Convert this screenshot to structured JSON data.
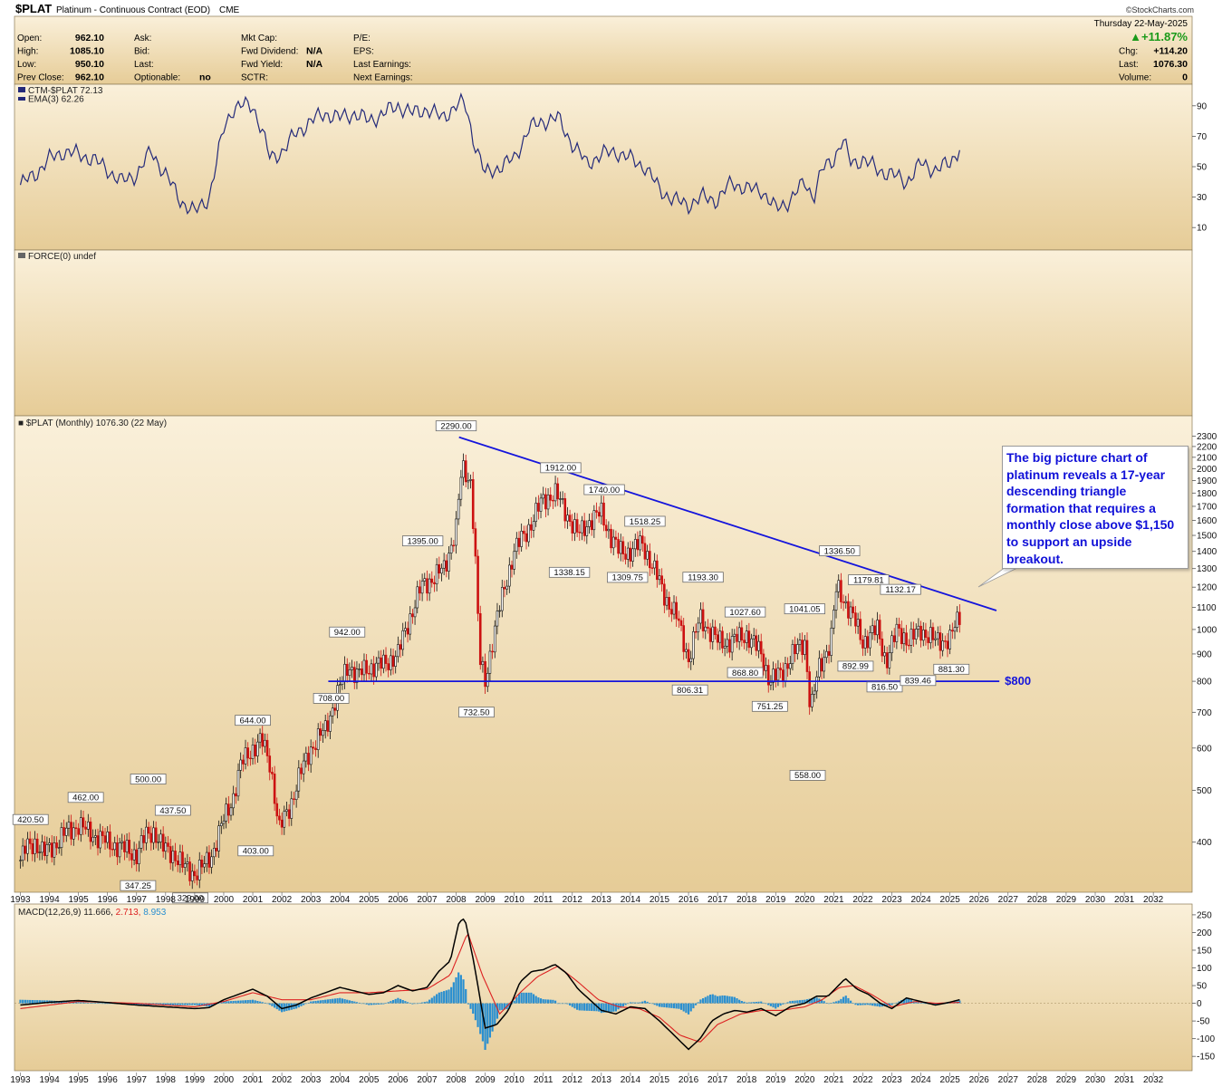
{
  "header": {
    "symbol": "$PLAT",
    "name": "Platinum - Continuous Contract (EOD)",
    "exchange": "CME",
    "copyright": "©StockCharts.com",
    "date_line": "Thursday  22-May-2025",
    "change_pct": "▲+11.87%",
    "stats_left": [
      {
        "label": "Open:",
        "value": "962.10"
      },
      {
        "label": "High:",
        "value": "1085.10"
      },
      {
        "label": "Low:",
        "value": "950.10"
      },
      {
        "label": "Prev Close:",
        "value": "962.10"
      }
    ],
    "stats_mid1": [
      {
        "label": "Ask:",
        "value": ""
      },
      {
        "label": "Bid:",
        "value": ""
      },
      {
        "label": "Last:",
        "value": ""
      },
      {
        "label": "Optionable:",
        "value": "no"
      }
    ],
    "stats_mid2": [
      {
        "label": "Mkt Cap:",
        "value": ""
      },
      {
        "label": "Fwd Dividend:",
        "value": "N/A"
      },
      {
        "label": "Fwd Yield:",
        "value": "N/A"
      },
      {
        "label": "SCTR:",
        "value": ""
      }
    ],
    "stats_mid3": [
      {
        "label": "P/E:",
        "value": ""
      },
      {
        "label": "EPS:",
        "value": ""
      },
      {
        "label": "Last Earnings:",
        "value": ""
      },
      {
        "label": "Next Earnings:",
        "value": ""
      }
    ],
    "stats_right": [
      {
        "label": "Chg:",
        "value": "+114.20"
      },
      {
        "label": "Last:",
        "value": "1076.30"
      },
      {
        "label": "Volume:",
        "value": "0"
      }
    ]
  },
  "colors": {
    "panel_bg_top": "#faf0da",
    "panel_bg_bottom": "#e6cc97",
    "price_up": "#111111",
    "price_down": "#cc1111",
    "ctm_line": "#242a7a",
    "trendline": "#1414dc",
    "callout_text": "#1010d8",
    "macd_line": "#000000",
    "signal_line": "#dd2222",
    "histogram": "#2a8fd0"
  },
  "chart_data": [
    {
      "type": "line",
      "panel": "ctm",
      "title": "CTM-$PLAT 72.13",
      "series": [
        {
          "name": "CTM-$PLAT",
          "x": [
            1993.0,
            1993.5,
            1994.0,
            1994.5,
            1995.0,
            1995.5,
            1996.0,
            1996.5,
            1997.0,
            1997.5,
            1998.0,
            1998.5,
            1999.0,
            1999.5,
            2000.0,
            2000.3,
            2000.6,
            2001.0,
            2001.3,
            2001.6,
            2002.0,
            2002.5,
            2003.0,
            2003.5,
            2004.0,
            2004.5,
            2005.0,
            2005.5,
            2006.0,
            2006.5,
            2007.0,
            2007.5,
            2008.0,
            2008.3,
            2008.6,
            2009.0,
            2009.5,
            2010.0,
            2010.5,
            2011.0,
            2011.5,
            2012.0,
            2012.5,
            2013.0,
            2013.5,
            2014.0,
            2014.5,
            2015.0,
            2015.5,
            2016.0,
            2016.5,
            2017.0,
            2017.5,
            2018.0,
            2018.5,
            2019.0,
            2019.5,
            2020.0,
            2020.3,
            2020.6,
            2021.0,
            2021.3,
            2021.6,
            2022.0,
            2022.5,
            2023.0,
            2023.5,
            2024.0,
            2024.5,
            2025.0,
            2025.4
          ],
          "values": [
            38,
            45,
            55,
            60,
            58,
            55,
            48,
            40,
            45,
            60,
            45,
            28,
            20,
            30,
            75,
            88,
            90,
            90,
            75,
            55,
            60,
            72,
            80,
            85,
            82,
            85,
            80,
            85,
            90,
            85,
            88,
            82,
            90,
            92,
            68,
            45,
            50,
            55,
            75,
            80,
            82,
            65,
            52,
            58,
            60,
            55,
            50,
            35,
            28,
            25,
            30,
            28,
            40,
            35,
            35,
            22,
            28,
            40,
            30,
            48,
            55,
            68,
            52,
            55,
            48,
            45,
            40,
            52,
            48,
            52,
            65
          ]
        },
        {
          "name": "EMA(3) 62.26",
          "x": [],
          "values": []
        }
      ],
      "ylim": [
        0,
        100
      ],
      "yticks": [
        10,
        30,
        50,
        70,
        90
      ]
    },
    {
      "type": "line",
      "panel": "force",
      "title": "FORCE(0) undef",
      "series": []
    },
    {
      "type": "bar",
      "panel": "price",
      "title": "$PLAT (Monthly) 1076.30 (22 May)",
      "scale": "log",
      "ylim": [
        330,
        2350
      ],
      "yticks": [
        400,
        500,
        600,
        700,
        800,
        900,
        1000,
        1100,
        1200,
        1300,
        1400,
        1500,
        1600,
        1700,
        1800,
        1900,
        2000,
        2100,
        2200,
        2300
      ],
      "xlim": [
        1993.0,
        2032.9
      ],
      "xticks": [
        "1993",
        "1994",
        "1995",
        "1996",
        "1997",
        "1998",
        "1999",
        "2000",
        "2001",
        "2002",
        "2003",
        "2004",
        "2005",
        "2006",
        "2007",
        "2008",
        "2009",
        "2010",
        "2011",
        "2012",
        "2013",
        "2014",
        "2015",
        "2016",
        "2017",
        "2018",
        "2019",
        "2020",
        "2021",
        "2022",
        "2023",
        "2024",
        "2025",
        "2026",
        "2027",
        "2028",
        "2029",
        "2030",
        "2031",
        "2032"
      ],
      "series": [
        {
          "name": "$PLAT",
          "x": [
            1993.0,
            1993.2,
            1993.5,
            1993.8,
            1994.0,
            1994.3,
            1994.6,
            1995.0,
            1995.3,
            1995.6,
            1996.0,
            1996.5,
            1997.0,
            1997.3,
            1997.6,
            1997.9,
            1998.3,
            1998.6,
            1999.0,
            1999.3,
            1999.6,
            2000.0,
            2000.3,
            2000.6,
            2001.0,
            2001.3,
            2001.6,
            2001.9,
            2002.3,
            2002.6,
            2003.0,
            2003.5,
            2004.0,
            2004.3,
            2004.6,
            2005.0,
            2005.5,
            2006.0,
            2006.4,
            2006.8,
            2007.2,
            2007.6,
            2008.0,
            2008.2,
            2008.5,
            2008.8,
            2009.0,
            2009.5,
            2010.0,
            2010.5,
            2011.0,
            2011.4,
            2011.8,
            2012.2,
            2012.6,
            2013.0,
            2013.3,
            2013.6,
            2014.0,
            2014.4,
            2014.8,
            2015.2,
            2015.6,
            2016.0,
            2016.4,
            2016.7,
            2017.0,
            2017.5,
            2018.0,
            2018.5,
            2018.8,
            2019.2,
            2019.6,
            2020.0,
            2020.2,
            2020.5,
            2020.9,
            2021.1,
            2021.5,
            2022.0,
            2022.5,
            2022.8,
            2023.2,
            2023.6,
            2024.0,
            2024.5,
            2025.0,
            2025.4
          ],
          "values": [
            370,
            390,
            400,
            380,
            390,
            400,
            420,
            430,
            420,
            410,
            400,
            390,
            380,
            410,
            420,
            390,
            380,
            360,
            350,
            360,
            380,
            440,
            480,
            560,
            600,
            620,
            560,
            420,
            470,
            530,
            600,
            650,
            780,
            860,
            820,
            850,
            860,
            900,
            1050,
            1200,
            1250,
            1300,
            1550,
            2000,
            1900,
            880,
            800,
            1100,
            1400,
            1550,
            1750,
            1800,
            1650,
            1500,
            1600,
            1650,
            1500,
            1400,
            1400,
            1450,
            1300,
            1150,
            1050,
            880,
            1050,
            1000,
            950,
            950,
            980,
            900,
            800,
            830,
            900,
            950,
            700,
            850,
            950,
            1200,
            1100,
            950,
            1000,
            870,
            1000,
            950,
            1000,
            950,
            960,
            1076.3
          ]
        }
      ],
      "annotations": [
        {
          "text": "420.50"
        },
        {
          "text": "462.00"
        },
        {
          "text": "347.25"
        },
        {
          "text": "500.00"
        },
        {
          "text": "437.50"
        },
        {
          "text": "329.00"
        },
        {
          "text": "644.00"
        },
        {
          "text": "403.00"
        },
        {
          "text": "708.00"
        },
        {
          "text": "942.00"
        },
        {
          "text": "1395.00"
        },
        {
          "text": "2290.00"
        },
        {
          "text": "732.50"
        },
        {
          "text": "1912.00"
        },
        {
          "text": "1338.15"
        },
        {
          "text": "1740.00"
        },
        {
          "text": "1309.75"
        },
        {
          "text": "1518.25"
        },
        {
          "text": "1193.30"
        },
        {
          "text": "806.31"
        },
        {
          "text": "1027.60"
        },
        {
          "text": "868.80"
        },
        {
          "text": "751.25"
        },
        {
          "text": "1041.05"
        },
        {
          "text": "558.00"
        },
        {
          "text": "1336.50"
        },
        {
          "text": "1179.81"
        },
        {
          "text": "892.99"
        },
        {
          "text": "1132.17"
        },
        {
          "text": "816.50"
        },
        {
          "text": "839.46"
        },
        {
          "text": "881.30"
        }
      ],
      "trendlines": [
        {
          "name": "descending-resistance",
          "from": [
            2008.1,
            2290
          ],
          "to": [
            2026.6,
            1085
          ]
        },
        {
          "name": "support-800",
          "from": [
            2003.6,
            800
          ],
          "to": [
            2026.7,
            800
          ],
          "label": "$800"
        }
      ],
      "callout": "The big picture chart of platinum reveals a 17-year descending triangle formation that requires a monthly close above $1,150 to support an upside breakout."
    },
    {
      "type": "bar",
      "panel": "macd",
      "title": "MACD(12,26,9) 11.666, 2.713, 8.953",
      "title_parts": [
        "MACD(12,26,9) 11.666,",
        "2.713,",
        "8.953"
      ],
      "ylim": [
        -170,
        260
      ],
      "yticks": [
        -150,
        -100,
        -50,
        0,
        50,
        100,
        150,
        200,
        250
      ],
      "series": [
        {
          "name": "MACD",
          "x": [
            1993.0,
            1994.0,
            1995.0,
            1996.0,
            1997.0,
            1998.0,
            1999.0,
            1999.5,
            2000.0,
            2000.5,
            2001.0,
            2001.5,
            2002.0,
            2002.5,
            2003.0,
            2003.5,
            2004.0,
            2004.5,
            2005.0,
            2005.5,
            2006.0,
            2006.5,
            2007.0,
            2007.4,
            2007.8,
            2008.1,
            2008.3,
            2008.6,
            2009.0,
            2009.4,
            2009.8,
            2010.2,
            2010.6,
            2011.0,
            2011.4,
            2011.8,
            2012.2,
            2012.6,
            2013.0,
            2013.5,
            2014.0,
            2014.5,
            2015.0,
            2015.5,
            2016.0,
            2016.4,
            2016.8,
            2017.2,
            2017.6,
            2018.0,
            2018.5,
            2019.0,
            2019.5,
            2020.0,
            2020.4,
            2020.8,
            2021.1,
            2021.4,
            2021.8,
            2022.2,
            2022.6,
            2023.0,
            2023.5,
            2024.0,
            2024.5,
            2025.0,
            2025.4
          ],
          "values": [
            -5,
            3,
            8,
            2,
            -5,
            -10,
            -15,
            -12,
            10,
            25,
            40,
            20,
            -15,
            -5,
            15,
            30,
            45,
            35,
            25,
            30,
            50,
            35,
            45,
            90,
            120,
            230,
            240,
            120,
            -70,
            -60,
            -20,
            60,
            90,
            95,
            110,
            85,
            40,
            10,
            -20,
            -30,
            -10,
            -15,
            -50,
            -90,
            -130,
            -100,
            -50,
            -30,
            -20,
            -25,
            -15,
            -35,
            -10,
            0,
            20,
            20,
            45,
            70,
            40,
            25,
            0,
            -15,
            15,
            5,
            -5,
            3,
            11.666
          ]
        },
        {
          "name": "Signal",
          "x": [
            1993.0,
            1995.0,
            1997.0,
            1999.0,
            2000.0,
            2001.0,
            2002.0,
            2003.0,
            2004.0,
            2005.0,
            2006.0,
            2007.0,
            2007.8,
            2008.4,
            2008.9,
            2009.5,
            2010.2,
            2010.8,
            2011.5,
            2012.2,
            2012.9,
            2013.6,
            2014.3,
            2015.0,
            2015.7,
            2016.4,
            2017.0,
            2017.8,
            2018.5,
            2019.2,
            2020.0,
            2020.6,
            2021.2,
            2021.7,
            2022.3,
            2023.0,
            2023.8,
            2024.5,
            2025.4
          ],
          "values": [
            -15,
            5,
            0,
            -10,
            5,
            30,
            10,
            10,
            30,
            30,
            35,
            40,
            80,
            200,
            80,
            -30,
            30,
            75,
            105,
            60,
            10,
            -10,
            -15,
            -40,
            -90,
            -110,
            -60,
            -30,
            -20,
            -20,
            -10,
            10,
            45,
            50,
            25,
            -10,
            5,
            0,
            2.713
          ]
        },
        {
          "name": "Histogram",
          "x": [],
          "values": []
        }
      ],
      "xticks": [
        "1993",
        "1994",
        "1995",
        "1996",
        "1997",
        "1998",
        "1999",
        "2000",
        "2001",
        "2002",
        "2003",
        "2004",
        "2005",
        "2006",
        "2007",
        "2008",
        "2009",
        "2010",
        "2011",
        "2012",
        "2013",
        "2014",
        "2015",
        "2016",
        "2017",
        "2018",
        "2019",
        "2020",
        "2021",
        "2022",
        "2023",
        "2024",
        "2025",
        "2026",
        "2027",
        "2028",
        "2029",
        "2030",
        "2031",
        "2032"
      ]
    }
  ]
}
